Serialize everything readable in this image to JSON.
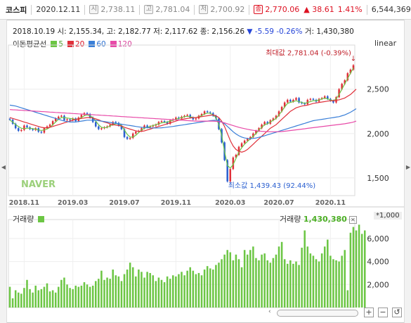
{
  "topbar": {
    "name": "코스피",
    "date": "2020.12.11",
    "items": [
      {
        "badge": "시",
        "value": "2,738.11"
      },
      {
        "badge": "고",
        "value": "2,781.04"
      },
      {
        "badge": "저",
        "value": "2,700.92"
      },
      {
        "badge": "종",
        "value": "2,770.06"
      }
    ],
    "change": "▲ 38.61",
    "change_pct": "1.41%",
    "volume": "6,544,369"
  },
  "info": {
    "date": "2018.10.19",
    "open": "시: 2,155.34",
    "high": "고: 2,182.77",
    "low": "저: 2,117.62",
    "close": "종: 2,156.26",
    "arrow": "▼",
    "chg": "-5.59",
    "chg_pct": "-0.26%",
    "vol": "거: 1,430,380"
  },
  "legend": {
    "title": "이동평균선",
    "items": [
      {
        "label": "5",
        "color": "#6cc644"
      },
      {
        "label": "20",
        "color": "#e0303a"
      },
      {
        "label": "60",
        "color": "#3a7fd8"
      },
      {
        "label": "120",
        "color": "#e84aa8"
      }
    ]
  },
  "scale_label": "linear",
  "annotations": {
    "max": "최대값 2,781.04 (-0.39%)",
    "min": "최소값 1,439.43 (92.44%)"
  },
  "watermark": "NAVER",
  "volume_panel": {
    "label": "거래량",
    "right_label": "거래량",
    "right_value": "1,430,380",
    "unit": "*1,000"
  },
  "chart_data": [
    {
      "type": "candlestick",
      "title": "코스피",
      "y_ticks": [
        "2,500",
        "2,000",
        "1,500"
      ],
      "y_tick_values": [
        2500,
        2000,
        1500
      ],
      "x_ticks": [
        "2018.11",
        "2019.03",
        "2019.07",
        "2019.11",
        "2020.03",
        "2020.07",
        "2020.11"
      ],
      "ylim": [
        1300,
        2950
      ],
      "x_tick_index": [
        5,
        22,
        40,
        58,
        77,
        94,
        112
      ],
      "close": [
        2156,
        2110,
        2060,
        2030,
        2040,
        2090,
        2070,
        2050,
        2040,
        2060,
        2020,
        2010,
        2060,
        2080,
        2100,
        2140,
        2170,
        2190,
        2200,
        2150,
        2160,
        2150,
        2170,
        2140,
        2180,
        2210,
        2230,
        2220,
        2180,
        2130,
        2080,
        2050,
        2060,
        2070,
        2080,
        2100,
        2130,
        2120,
        2090,
        2050,
        1960,
        1940,
        1950,
        2000,
        2020,
        2030,
        2060,
        2090,
        2070,
        2080,
        2090,
        2100,
        2130,
        2140,
        2130,
        2110,
        2150,
        2160,
        2180,
        2170,
        2190,
        2200,
        2210,
        2180,
        2160,
        2170,
        2200,
        2220,
        2250,
        2240,
        2230,
        2200,
        2170,
        2050,
        1900,
        1700,
        1460,
        1600,
        1730,
        1760,
        1850,
        1890,
        1920,
        1940,
        1960,
        2000,
        2030,
        2060,
        2100,
        2130,
        2110,
        2150,
        2170,
        2200,
        2250,
        2300,
        2350,
        2380,
        2360,
        2380,
        2400,
        2350,
        2340,
        2330,
        2380,
        2390,
        2380,
        2360,
        2390,
        2400,
        2420,
        2390,
        2370,
        2350,
        2410,
        2500,
        2560,
        2600,
        2680,
        2720,
        2770
      ],
      "ma": {
        "5": [
          2150,
          2130,
          2100,
          2080,
          2060,
          2055,
          2060,
          2060,
          2055,
          2050,
          2040,
          2035,
          2040,
          2050,
          2070,
          2100,
          2130,
          2160,
          2180,
          2180,
          2175,
          2170,
          2165,
          2160,
          2165,
          2180,
          2200,
          2210,
          2200,
          2180,
          2140,
          2100,
          2070,
          2065,
          2070,
          2085,
          2100,
          2110,
          2110,
          2090,
          2040,
          1990,
          1960,
          1960,
          1980,
          2010,
          2040,
          2060,
          2070,
          2080,
          2090,
          2100,
          2110,
          2120,
          2125,
          2130,
          2140,
          2150,
          2160,
          2170,
          2180,
          2190,
          2195,
          2190,
          2180,
          2180,
          2190,
          2200,
          2220,
          2230,
          2230,
          2210,
          2180,
          2100,
          1980,
          1800,
          1640,
          1610,
          1650,
          1720,
          1790,
          1840,
          1880,
          1910,
          1940,
          1970,
          2000,
          2040,
          2070,
          2100,
          2110,
          2130,
          2150,
          2170,
          2210,
          2250,
          2300,
          2340,
          2350,
          2360,
          2370,
          2360,
          2350,
          2340,
          2350,
          2360,
          2370,
          2370,
          2380,
          2390,
          2400,
          2390,
          2380,
          2370,
          2390,
          2440,
          2500,
          2560,
          2620,
          2680,
          2740
        ],
        "20": [
          2180,
          2170,
          2160,
          2150,
          2140,
          2130,
          2120,
          2110,
          2100,
          2090,
          2080,
          2070,
          2065,
          2065,
          2070,
          2080,
          2090,
          2100,
          2110,
          2120,
          2130,
          2140,
          2150,
          2160,
          2165,
          2170,
          2175,
          2180,
          2180,
          2175,
          2165,
          2155,
          2140,
          2130,
          2120,
          2110,
          2100,
          2095,
          2090,
          2085,
          2070,
          2060,
          2050,
          2040,
          2030,
          2025,
          2025,
          2030,
          2040,
          2050,
          2060,
          2070,
          2080,
          2090,
          2100,
          2110,
          2120,
          2130,
          2140,
          2150,
          2160,
          2165,
          2170,
          2175,
          2180,
          2180,
          2185,
          2190,
          2195,
          2200,
          2205,
          2210,
          2200,
          2180,
          2140,
          2080,
          2000,
          1920,
          1860,
          1820,
          1800,
          1790,
          1800,
          1820,
          1850,
          1880,
          1910,
          1940,
          1970,
          2000,
          2030,
          2060,
          2080,
          2100,
          2130,
          2160,
          2190,
          2220,
          2250,
          2270,
          2290,
          2300,
          2310,
          2315,
          2320,
          2330,
          2340,
          2345,
          2350,
          2355,
          2360,
          2365,
          2370,
          2370,
          2375,
          2380,
          2390,
          2400,
          2420,
          2440,
          2470,
          2500
        ],
        "60": [
          2320,
          2315,
          2310,
          2300,
          2290,
          2280,
          2270,
          2260,
          2250,
          2240,
          2230,
          2220,
          2210,
          2200,
          2190,
          2180,
          2170,
          2160,
          2150,
          2140,
          2135,
          2130,
          2130,
          2130,
          2135,
          2140,
          2145,
          2150,
          2150,
          2150,
          2148,
          2145,
          2140,
          2135,
          2130,
          2125,
          2120,
          2115,
          2110,
          2105,
          2100,
          2095,
          2090,
          2085,
          2080,
          2075,
          2070,
          2068,
          2066,
          2064,
          2063,
          2062,
          2063,
          2065,
          2068,
          2072,
          2076,
          2080,
          2085,
          2090,
          2095,
          2100,
          2105,
          2110,
          2115,
          2120,
          2125,
          2130,
          2135,
          2140,
          2145,
          2148,
          2150,
          2145,
          2130,
          2110,
          2080,
          2050,
          2020,
          1995,
          1975,
          1960,
          1950,
          1945,
          1942,
          1945,
          1950,
          1958,
          1966,
          1975,
          1985,
          1995,
          2005,
          2015,
          2025,
          2035,
          2045,
          2055,
          2065,
          2075,
          2085,
          2095,
          2105,
          2115,
          2125,
          2135,
          2145,
          2150,
          2155,
          2160,
          2165,
          2170,
          2175,
          2180,
          2185,
          2190,
          2200,
          2210,
          2225,
          2240,
          2260,
          2280
        ],
        "120": [
          2270,
          2268,
          2266,
          2264,
          2262,
          2260,
          2258,
          2256,
          2254,
          2252,
          2250,
          2248,
          2246,
          2244,
          2242,
          2240,
          2238,
          2236,
          2234,
          2232,
          2230,
          2228,
          2226,
          2224,
          2222,
          2220,
          2218,
          2216,
          2214,
          2212,
          2210,
          2208,
          2206,
          2204,
          2202,
          2200,
          2198,
          2196,
          2194,
          2192,
          2190,
          2188,
          2186,
          2184,
          2182,
          2180,
          2178,
          2176,
          2174,
          2172,
          2170,
          2168,
          2166,
          2164,
          2162,
          2160,
          2158,
          2156,
          2154,
          2152,
          2150,
          2148,
          2146,
          2144,
          2142,
          2140,
          2140,
          2140,
          2140,
          2140,
          2140,
          2140,
          2138,
          2134,
          2128,
          2120,
          2110,
          2100,
          2090,
          2080,
          2070,
          2062,
          2055,
          2048,
          2042,
          2036,
          2032,
          2028,
          2025,
          2023,
          2021,
          2020,
          2020,
          2020,
          2021,
          2023,
          2026,
          2030,
          2034,
          2038,
          2042,
          2046,
          2050,
          2054,
          2058,
          2062,
          2066,
          2070,
          2074,
          2078,
          2082,
          2086,
          2090,
          2094,
          2098,
          2102,
          2106,
          2110,
          2116,
          2122,
          2130,
          2140
        ]
      }
    },
    {
      "type": "bar",
      "title": "거래량",
      "y_ticks": [
        "6,000",
        "4,000",
        "2,000"
      ],
      "y_tick_values": [
        6000,
        4000,
        2000
      ],
      "ylim": [
        0,
        7400
      ],
      "values": [
        1800,
        800,
        1500,
        1300,
        1200,
        1700,
        2400,
        1600,
        1300,
        1900,
        1500,
        1600,
        1800,
        2100,
        1400,
        1500,
        1300,
        1800,
        2400,
        2600,
        2000,
        1700,
        1600,
        1900,
        1800,
        1900,
        2200,
        2000,
        1800,
        1900,
        2300,
        2500,
        3200,
        2400,
        2600,
        2500,
        3300,
        2800,
        2700,
        2300,
        2900,
        3300,
        3900,
        3500,
        2700,
        3300,
        3100,
        2600,
        3100,
        3000,
        2800,
        2300,
        2600,
        2400,
        2200,
        2700,
        2500,
        2800,
        2700,
        2900,
        3100,
        2800,
        3200,
        3500,
        3200,
        2900,
        3000,
        2800,
        3300,
        3600,
        3400,
        3300,
        3700,
        3900,
        4200,
        4600,
        5000,
        4800,
        4100,
        4600,
        4200,
        3500,
        5000,
        4600,
        5000,
        5300,
        4300,
        4100,
        4600,
        4700,
        4100,
        3900,
        4300,
        4600,
        5300,
        5700,
        4200,
        3800,
        4100,
        3800,
        4000,
        3700,
        5200,
        6700,
        5300,
        4700,
        4500,
        4200,
        4000,
        4700,
        5300,
        5900,
        4500,
        4200,
        4100,
        4000,
        4500,
        5000,
        1500,
        6500,
        7000,
        6700,
        7200,
        6400,
        6700
      ]
    }
  ]
}
